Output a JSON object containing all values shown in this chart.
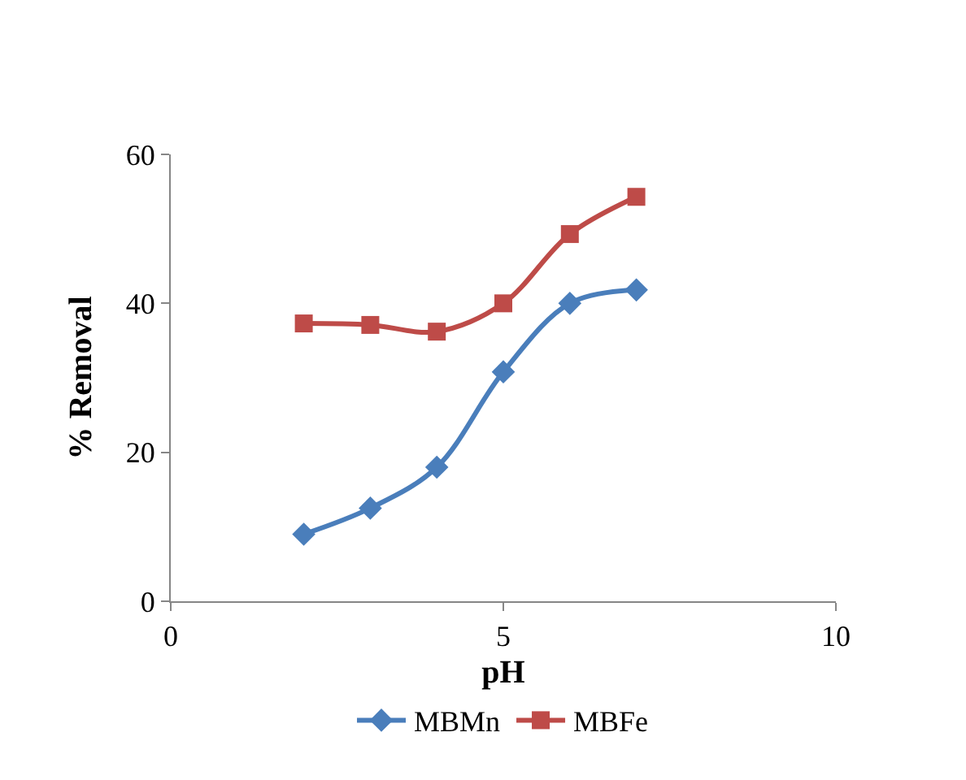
{
  "chart_data": {
    "type": "line",
    "xlabel": "pH",
    "ylabel": "% Removal",
    "x": [
      2,
      3,
      4,
      5,
      6,
      7
    ],
    "series": [
      {
        "name": "MBMn",
        "color": "#4a7ebb",
        "marker": "diamond",
        "values": [
          9,
          12.5,
          18,
          30.8,
          40,
          41.8
        ]
      },
      {
        "name": "MBFe",
        "color": "#be4b48",
        "marker": "square",
        "values": [
          37.3,
          37.1,
          36.2,
          40,
          49.3,
          54.3
        ]
      }
    ],
    "xlim": [
      0,
      10
    ],
    "xticks": [
      0,
      5,
      10
    ],
    "ylim": [
      0,
      60
    ],
    "yticks": [
      0,
      20,
      40,
      60
    ],
    "grid": false,
    "legend": "bottom",
    "line_style": "solid"
  }
}
